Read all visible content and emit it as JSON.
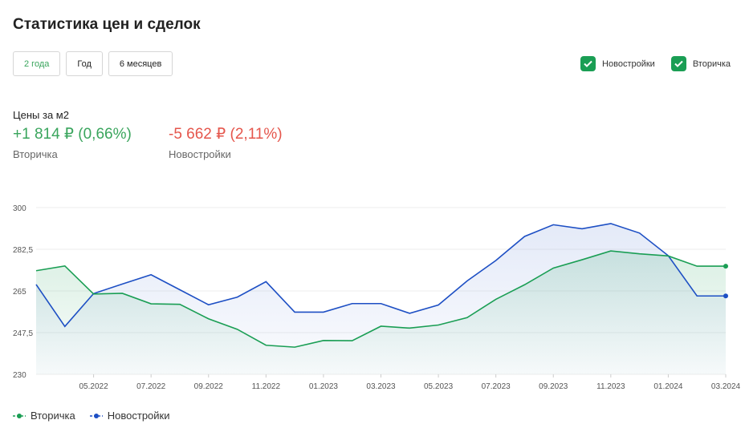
{
  "page": {
    "title": "Статистика цен и сделок"
  },
  "periods": [
    {
      "label": "2 года",
      "active": true
    },
    {
      "label": "Год",
      "active": false
    },
    {
      "label": "6 месяцев",
      "active": false
    }
  ],
  "filters": [
    {
      "label": "Новостройки",
      "checked": true
    },
    {
      "label": "Вторичка",
      "checked": true
    }
  ],
  "stats": {
    "label": "Цены за м2",
    "secondary": {
      "value": "+1 814 ₽  (0,66%)",
      "caption": "Вторичка"
    },
    "new": {
      "value": "-5 662 ₽  (2,11%)",
      "caption": "Новостройки"
    }
  },
  "colors": {
    "accent_green": "#1a9e54",
    "positive": "#3aa55d",
    "negative": "#e5564c",
    "series_green": "#1a9e54",
    "series_blue": "#1d4fc4"
  },
  "chart_data": {
    "type": "line",
    "x": [
      "03.2022",
      "04.2022",
      "05.2022",
      "06.2022",
      "07.2022",
      "08.2022",
      "09.2022",
      "10.2022",
      "11.2022",
      "12.2022",
      "01.2023",
      "02.2023",
      "03.2023",
      "04.2023",
      "05.2023",
      "06.2023",
      "07.2023",
      "08.2023",
      "09.2023",
      "10.2023",
      "11.2023",
      "12.2023",
      "01.2024",
      "02.2024",
      "03.2024"
    ],
    "x_tick_labels": [
      "05.2022",
      "07.2022",
      "09.2022",
      "11.2022",
      "01.2023",
      "03.2023",
      "05.2023",
      "07.2023",
      "09.2023",
      "11.2023",
      "01.2024",
      "03.2024"
    ],
    "y_ticks": [
      "300",
      "282,5",
      "265",
      "247,5",
      "230"
    ],
    "ylim": [
      230,
      300
    ],
    "series": [
      {
        "name": "Вторичка",
        "color": "#1a9e54",
        "values": [
          273.5,
          275.5,
          263.7,
          264,
          259.6,
          259.4,
          253.3,
          248.9,
          242.2,
          241.4,
          244.2,
          244.1,
          250.2,
          249.4,
          250.7,
          253.8,
          261.5,
          267.6,
          274.6,
          278.1,
          281.8,
          280.6,
          279.7,
          275.4,
          275.4
        ]
      },
      {
        "name": "Новостройки",
        "color": "#1d4fc4",
        "values": [
          267.7,
          250.1,
          263.9,
          267.9,
          271.8,
          265.5,
          259.2,
          262.4,
          268.9,
          256.1,
          256.1,
          259.7,
          259.7,
          255.6,
          259.1,
          269.2,
          277.8,
          287.9,
          292.8,
          291.1,
          293.3,
          289.3,
          279.8,
          262.9,
          262.9
        ]
      }
    ],
    "grid": true,
    "legend_position": "bottom-left"
  }
}
